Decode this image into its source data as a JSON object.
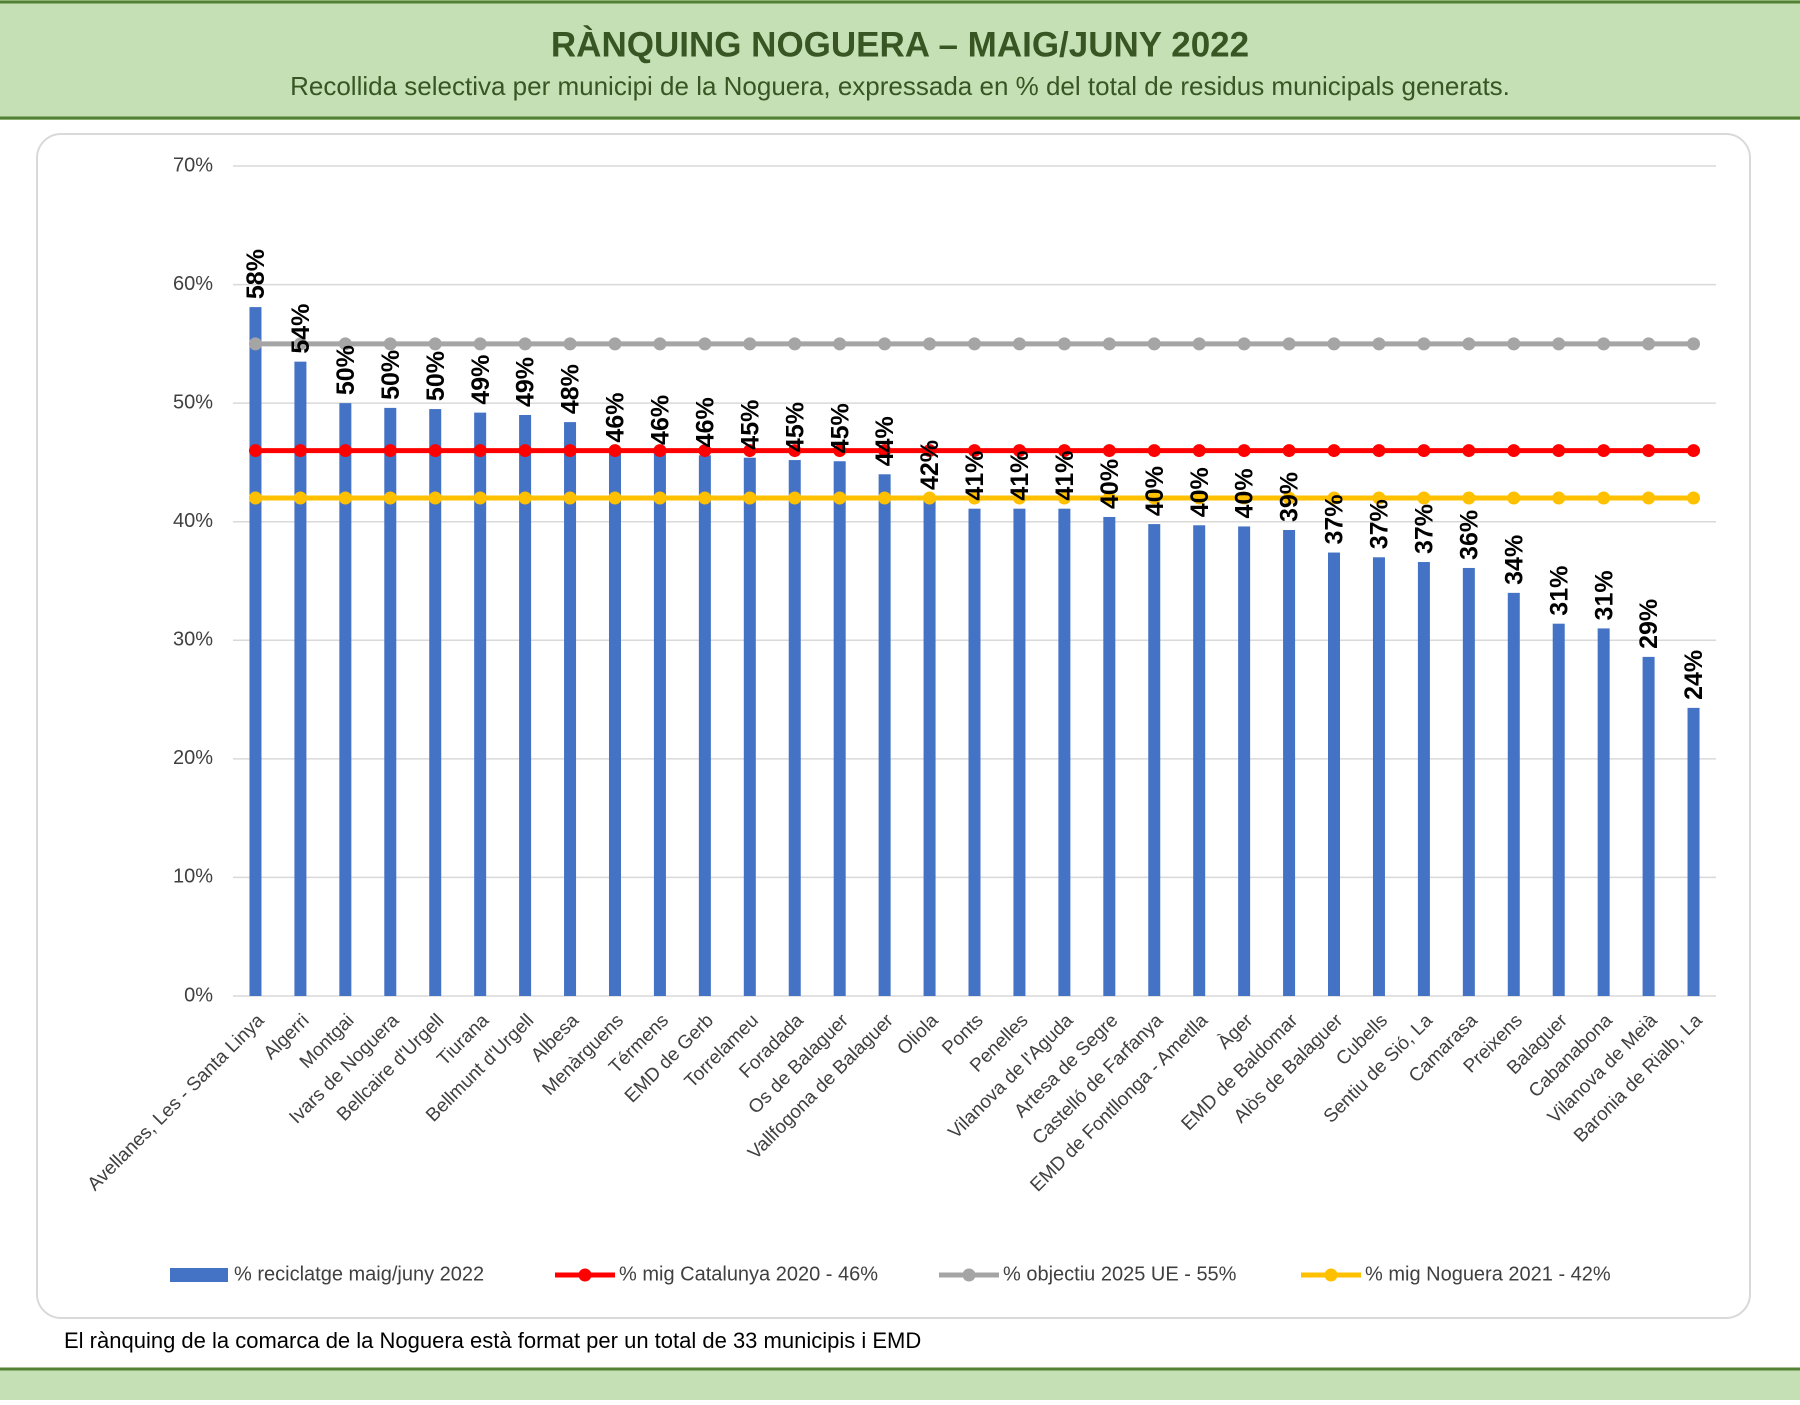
{
  "header": {
    "title": "RÀNQUING NOGUERA – MAIG/JUNY 2022",
    "subtitle": "Recollida selectiva per municipi de la Noguera, expressada en % del total de residus municipals generats."
  },
  "chart_data": {
    "type": "bar",
    "categories": [
      "Avellanes, Les - Santa Linya",
      "Algerri",
      "Montgai",
      "Ivars de Noguera",
      "Bellcaire d'Urgell",
      "Tiurana",
      "Bellmunt d'Urgell",
      "Albesa",
      "Menàrguens",
      "Térmens",
      "EMD de Gerb",
      "Torrelameu",
      "Foradada",
      "Os de Balaguer",
      "Vallfogona de Balaguer",
      "Oliola",
      "Ponts",
      "Penelles",
      "Vilanova de l'Aguda",
      "Artesa de Segre",
      "Castelló de Farfanya",
      "EMD de Fontllonga - Ametlla",
      "Àger",
      "EMD de Baldomar",
      "Alòs de Balaguer",
      "Cubells",
      "Sentiu de Sió, La",
      "Camarasa",
      "Preixens",
      "Balaguer",
      "Cabanabona",
      "Vilanova de Meià",
      "Baronia de Rialb, La"
    ],
    "series": [
      {
        "name": "% reciclatge maig/juny 2022",
        "type": "bar",
        "color": "#4472c4",
        "values": [
          58.1,
          53.5,
          50.0,
          49.6,
          49.5,
          49.2,
          49.0,
          48.4,
          46.0,
          45.8,
          45.6,
          45.4,
          45.2,
          45.1,
          44.0,
          42.0,
          41.1,
          41.1,
          41.1,
          40.4,
          39.8,
          39.7,
          39.6,
          39.3,
          37.4,
          37.0,
          36.6,
          36.1,
          34.0,
          31.4,
          31.0,
          28.6,
          24.3
        ],
        "value_labels": [
          "58%",
          "54%",
          "50%",
          "50%",
          "50%",
          "49%",
          "49%",
          "48%",
          "46%",
          "46%",
          "46%",
          "45%",
          "45%",
          "45%",
          "44%",
          "42%",
          "41%",
          "41%",
          "41%",
          "40%",
          "40%",
          "40%",
          "40%",
          "39%",
          "37%",
          "37%",
          "37%",
          "36%",
          "34%",
          "31%",
          "31%",
          "29%",
          "24%"
        ]
      },
      {
        "name": "% mig Catalunya 2020 - 46%",
        "type": "line",
        "color": "#ff0000",
        "values": [
          46,
          46,
          46,
          46,
          46,
          46,
          46,
          46,
          46,
          46,
          46,
          46,
          46,
          46,
          46,
          46,
          46,
          46,
          46,
          46,
          46,
          46,
          46,
          46,
          46,
          46,
          46,
          46,
          46,
          46,
          46,
          46,
          46
        ]
      },
      {
        "name": "% objectiu 2025 UE - 55%",
        "type": "line",
        "color": "#a5a5a5",
        "values": [
          55,
          55,
          55,
          55,
          55,
          55,
          55,
          55,
          55,
          55,
          55,
          55,
          55,
          55,
          55,
          55,
          55,
          55,
          55,
          55,
          55,
          55,
          55,
          55,
          55,
          55,
          55,
          55,
          55,
          55,
          55,
          55,
          55
        ]
      },
      {
        "name": "% mig Noguera 2021 - 42%",
        "type": "line",
        "color": "#ffc000",
        "values": [
          42,
          42,
          42,
          42,
          42,
          42,
          42,
          42,
          42,
          42,
          42,
          42,
          42,
          42,
          42,
          42,
          42,
          42,
          42,
          42,
          42,
          42,
          42,
          42,
          42,
          42,
          42,
          42,
          42,
          42,
          42,
          42,
          42
        ]
      }
    ],
    "ylim": [
      0,
      70
    ],
    "yticks": [
      {
        "value": 0,
        "label": "0%"
      },
      {
        "value": 10,
        "label": "10%"
      },
      {
        "value": 20,
        "label": "20%"
      },
      {
        "value": 30,
        "label": "30%"
      },
      {
        "value": 40,
        "label": "40%"
      },
      {
        "value": 50,
        "label": "50%"
      },
      {
        "value": 60,
        "label": "60%"
      },
      {
        "value": 70,
        "label": "70%"
      }
    ],
    "grid": true,
    "legend": "bottom"
  },
  "footnote": "El rànquing de la comarca de la Noguera està format per un total de 33 municipis i EMD"
}
